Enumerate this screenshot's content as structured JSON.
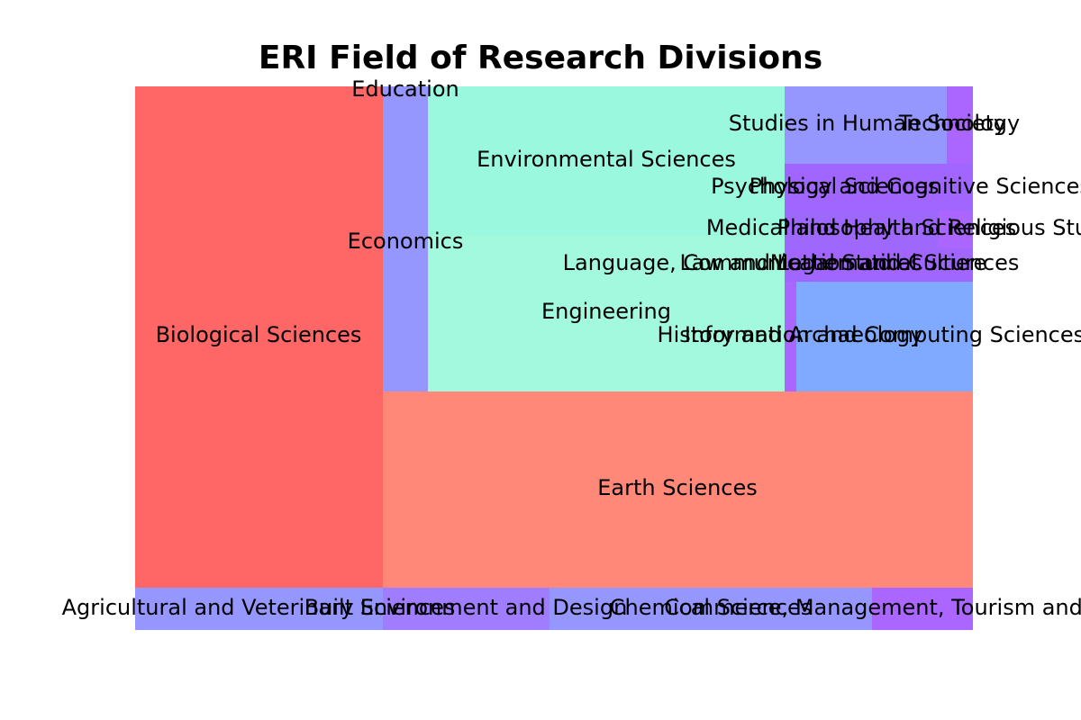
{
  "chart_data": {
    "type": "treemap",
    "title": "ERI Field of Research Divisions",
    "tiles": [
      {
        "name": "Biological Sciences",
        "color": "#ff6666"
      },
      {
        "name": "Education",
        "color": "#a066ff"
      },
      {
        "name": "Economics",
        "color": "#9696ff"
      },
      {
        "name": "Environmental Sciences",
        "color": "#99f8de"
      },
      {
        "name": "Language, Communication and Culture",
        "color": "#a3f9dd"
      },
      {
        "name": "Engineering",
        "color": "#a3f9dd"
      },
      {
        "name": "Studies in Human Society",
        "color": "#9696ff"
      },
      {
        "name": "Technology",
        "color": "#aa66ff"
      },
      {
        "name": "Psychology and Cognitive Sciences",
        "color": "#a066ff"
      },
      {
        "name": "Physical Sciences",
        "color": "#a066ff"
      },
      {
        "name": "Medical and Health Sciences",
        "color": "#9f68fd"
      },
      {
        "name": "Philosophy and Religious Studies",
        "color": "#aa66ff"
      },
      {
        "name": "Law and Legal Studies",
        "color": "#a066ff"
      },
      {
        "name": "Mathematical Sciences",
        "color": "#a066ff"
      },
      {
        "name": "History and Archaeology",
        "color": "#aa66ff"
      },
      {
        "name": "Information and Computing Sciences",
        "color": "#80aaff"
      },
      {
        "name": "Earth Sciences",
        "color": "#ff8878"
      },
      {
        "name": "Agricultural and Veterinary Sciences",
        "color": "#9696ff"
      },
      {
        "name": "Built Environment and Design",
        "color": "#a07cff"
      },
      {
        "name": "Chemical Sciences",
        "color": "#9696ff"
      },
      {
        "name": "Commerce, Management, Tourism and Services",
        "color": "#aa66ff"
      }
    ]
  }
}
